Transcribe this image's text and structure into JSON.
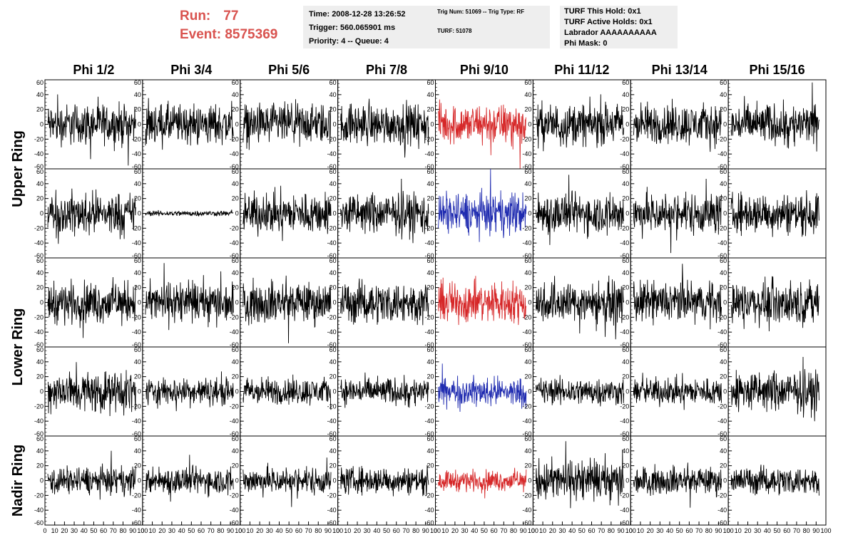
{
  "header": {
    "run_label": "Run:",
    "run_value": "77",
    "event_label": "Event:",
    "event_value": "8575369",
    "info1": [
      "Time: 2008-12-28 13:26:52",
      "Trigger: 560.065901 ms",
      "Priority: 4 -- Queue: 4"
    ],
    "info2": [
      "Trig Num: 51069 -- Trig Type: RF",
      "TURF: 51078"
    ],
    "info3": [
      "TURF This Hold: 0x1",
      "TURF Active Holds: 0x1",
      "Labrador AAAAAAAAAA",
      "Phi Mask: 0"
    ]
  },
  "colors": {
    "accent_red": "#d9534f",
    "trace_black": "#000000",
    "trace_red": "#d62728",
    "trace_blue": "#1f2bb0",
    "infobox_bg": "#eeeeee"
  },
  "chart_data": {
    "type": "line",
    "grid": false,
    "columns": [
      "Phi 1/2",
      "Phi 3/4",
      "Phi 5/6",
      "Phi 7/8",
      "Phi 9/10",
      "Phi 11/12",
      "Phi 13/14",
      "Phi 15/16"
    ],
    "rows": [
      "Upper Ring",
      "Upper Ring",
      "Lower Ring",
      "Lower Ring",
      "Nadir Ring"
    ],
    "ring_labels": [
      "Upper Ring",
      "Lower Ring",
      "Nadir Ring"
    ],
    "ylim": [
      -60,
      60
    ],
    "y_ticks": [
      60,
      40,
      20,
      0,
      -20,
      -40,
      -60
    ],
    "y_tick_labels": [
      "60",
      "40",
      "20",
      "0",
      "-20",
      "-40",
      "-60"
    ],
    "xlim": [
      0,
      100
    ],
    "x_tick_labels": [
      "0",
      "10",
      "20",
      "30",
      "40",
      "50",
      "60",
      "70",
      "80",
      "90",
      "100"
    ],
    "highlighted": [
      {
        "row": 0,
        "col": 4,
        "color": "red"
      },
      {
        "row": 1,
        "col": 4,
        "color": "blue"
      },
      {
        "row": 2,
        "col": 4,
        "color": "red"
      },
      {
        "row": 3,
        "col": 4,
        "color": "blue"
      },
      {
        "row": 4,
        "col": 4,
        "color": "red"
      }
    ],
    "trace_amplitude_approx": [
      [
        30,
        30,
        30,
        30,
        30,
        30,
        30,
        30
      ],
      [
        30,
        4,
        30,
        30,
        30,
        30,
        30,
        30
      ],
      [
        30,
        30,
        30,
        30,
        30,
        30,
        30,
        30
      ],
      [
        30,
        20,
        20,
        20,
        20,
        20,
        20,
        30
      ],
      [
        20,
        20,
        20,
        20,
        15,
        30,
        20,
        20
      ]
    ]
  }
}
